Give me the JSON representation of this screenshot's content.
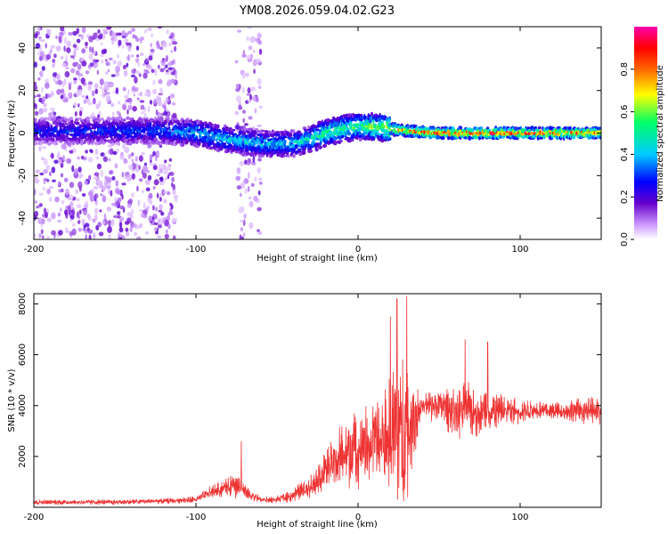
{
  "title": "YM08.2026.059.04.02.G23",
  "chart_data": [
    {
      "type": "heatmap",
      "title": "YM08.2026.059.04.02.G23",
      "xlabel": "Height of straight line (km)",
      "ylabel": "Frequency (Hz)",
      "xlim": [
        -200,
        150
      ],
      "ylim": [
        -50,
        50
      ],
      "xticks": [
        -200,
        -100,
        0,
        100
      ],
      "xtick_labels": [
        "-200",
        "-100",
        "0",
        "100"
      ],
      "yticks": [
        -40,
        -20,
        0,
        20,
        40
      ],
      "ytick_labels": [
        "-40",
        "-20",
        "0",
        "20",
        "40"
      ],
      "colorbar": {
        "label": "Normalized spectral amplitude",
        "range": [
          0,
          1
        ],
        "ticks": [
          0.0,
          0.2,
          0.4,
          0.6,
          0.8
        ],
        "tick_labels": [
          "0.0",
          "0.2",
          "0.4",
          "0.6",
          "0.8"
        ],
        "colors": [
          "#ffffff",
          "#cc99ff",
          "#6600cc",
          "#0000ff",
          "#00ccff",
          "#00ff66",
          "#ffff00",
          "#ff6600",
          "#ff0000",
          "#ff00aa"
        ]
      },
      "ridge": {
        "x": [
          -200,
          -120,
          -100,
          -80,
          -60,
          -40,
          -30,
          -20,
          -10,
          0,
          10,
          20,
          30,
          50,
          100,
          150
        ],
        "frequency": [
          1,
          1,
          0,
          -3,
          -5,
          -5,
          -3,
          0,
          2,
          3,
          3,
          2,
          1,
          0,
          0,
          0
        ],
        "amplitude": [
          0.3,
          0.35,
          0.45,
          0.45,
          0.45,
          0.45,
          0.5,
          0.6,
          0.6,
          0.6,
          0.65,
          0.75,
          0.85,
          0.92,
          0.92,
          0.85
        ]
      },
      "broadband_noise": {
        "x_ranges": [
          [
            -200,
            -112
          ],
          [
            -75,
            -60
          ]
        ],
        "frequency_range": [
          -50,
          50
        ]
      }
    },
    {
      "type": "line",
      "xlabel": "Height of straight line (km)",
      "ylabel": "SNR (10 * v/v)",
      "xlim": [
        -200,
        150
      ],
      "ylim": [
        0,
        8400
      ],
      "xticks": [
        -200,
        -100,
        0,
        100
      ],
      "xtick_labels": [
        "-200",
        "-100",
        "0",
        "100"
      ],
      "yticks": [
        2000,
        4000,
        6000,
        8000
      ],
      "ytick_labels": [
        "2000",
        "4000",
        "6000",
        "8000"
      ],
      "color": "#ee3333",
      "series": [
        {
          "name": "SNR",
          "x": [
            -200,
            -150,
            -120,
            -100,
            -90,
            -80,
            -75,
            -70,
            -60,
            -50,
            -40,
            -30,
            -20,
            -10,
            0,
            10,
            20,
            25,
            30,
            40,
            50,
            60,
            70,
            80,
            90,
            100,
            120,
            150
          ],
          "values": [
            200,
            200,
            250,
            300,
            600,
            800,
            1000,
            600,
            300,
            300,
            500,
            800,
            1500,
            2000,
            2300,
            2500,
            2800,
            3000,
            3000,
            4000,
            4000,
            3800,
            3800,
            3800,
            3800,
            3800,
            3800,
            3800
          ],
          "spread": [
            150,
            150,
            150,
            200,
            400,
            500,
            900,
            400,
            200,
            200,
            400,
            600,
            1200,
            1800,
            2000,
            2500,
            3500,
            4500,
            4000,
            800,
            900,
            1500,
            1500,
            1200,
            800,
            700,
            500,
            800
          ],
          "peaks": [
            {
              "x": -72,
              "value": 2600
            },
            {
              "x": 20,
              "value": 7500
            },
            {
              "x": 24,
              "value": 8200
            },
            {
              "x": 30,
              "value": 8300
            },
            {
              "x": 66,
              "value": 6600
            },
            {
              "x": 80,
              "value": 6500
            }
          ]
        }
      ]
    }
  ]
}
